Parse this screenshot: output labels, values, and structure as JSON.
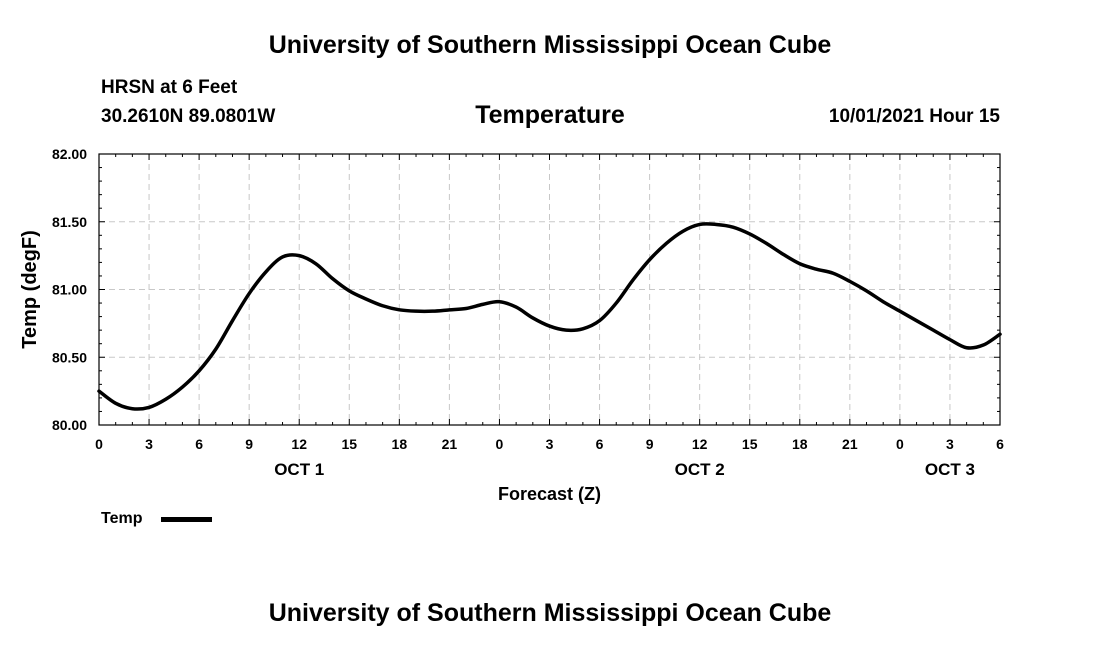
{
  "header": {
    "title": "University of Southern Mississippi Ocean Cube",
    "station": "HRSN at 6 Feet",
    "coords": "30.2610N  89.0801W",
    "chart_title": "Temperature",
    "date_hour": "10/01/2021 Hour 15"
  },
  "footer": {
    "title": "University of Southern Mississippi Ocean Cube"
  },
  "legend": {
    "label": "Temp",
    "color": "#000000"
  },
  "chart_data": {
    "type": "line",
    "title": "Temperature",
    "xlabel": "Forecast (Z)",
    "ylabel": "Temp (degF)",
    "ylim": [
      80.0,
      82.0
    ],
    "xlim": [
      0,
      54
    ],
    "yticks": [
      "80.00",
      "80.50",
      "81.00",
      "81.50",
      "82.00"
    ],
    "xticks": [
      "0",
      "3",
      "6",
      "9",
      "12",
      "15",
      "18",
      "21",
      "0",
      "3",
      "6",
      "9",
      "12",
      "15",
      "18",
      "21",
      "0",
      "3",
      "6"
    ],
    "day_labels": [
      {
        "x": 12,
        "label": "OCT 1"
      },
      {
        "x": 36,
        "label": "OCT 2"
      },
      {
        "x": 51,
        "label": "OCT 3"
      }
    ],
    "grid": true,
    "legend_position": "bottom-left",
    "series": [
      {
        "name": "Temp",
        "x": [
          0,
          1,
          2,
          3,
          4,
          5,
          6,
          7,
          8,
          9,
          10,
          11,
          12,
          13,
          14,
          15,
          16,
          17,
          18,
          19,
          20,
          21,
          22,
          23,
          24,
          25,
          26,
          27,
          28,
          29,
          30,
          31,
          32,
          33,
          34,
          35,
          36,
          37,
          38,
          39,
          40,
          41,
          42,
          43,
          44,
          45,
          46,
          47,
          48,
          49,
          50,
          51,
          52,
          53,
          54
        ],
        "values": [
          80.25,
          80.16,
          80.12,
          80.13,
          80.19,
          80.28,
          80.4,
          80.56,
          80.77,
          80.97,
          81.13,
          81.24,
          81.25,
          81.19,
          81.08,
          80.99,
          80.93,
          80.88,
          80.85,
          80.84,
          80.84,
          80.85,
          80.86,
          80.89,
          80.91,
          80.87,
          80.79,
          80.73,
          80.7,
          80.71,
          80.77,
          80.9,
          81.07,
          81.22,
          81.34,
          81.43,
          81.48,
          81.48,
          81.46,
          81.41,
          81.34,
          81.26,
          81.19,
          81.15,
          81.12,
          81.06,
          80.99,
          80.91,
          80.84,
          80.77,
          80.7,
          80.63,
          80.57,
          80.59,
          80.67
        ]
      }
    ]
  }
}
